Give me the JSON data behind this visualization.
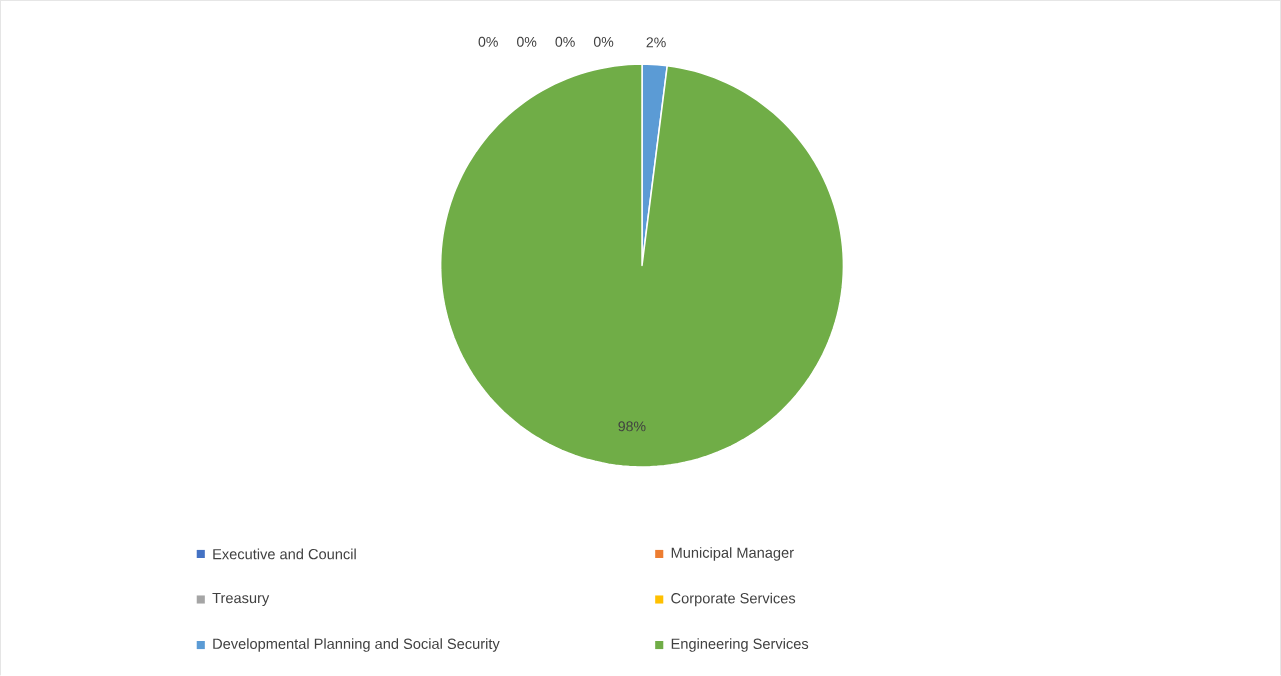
{
  "chart_data": {
    "type": "pie",
    "categories": [
      "Executive and Council",
      "Municipal Manager",
      "Treasury",
      "Corporate Services",
      "Developmental Planning and Social Security",
      "Engineering Services"
    ],
    "values": [
      0,
      0,
      0,
      0,
      2,
      98
    ],
    "colors": [
      "#4472c4",
      "#ed7d31",
      "#a5a5a5",
      "#ffc000",
      "#5b9bd5",
      "#70ad47"
    ],
    "value_labels": [
      "0%",
      "0%",
      "0%",
      "0%",
      "2%",
      "98%"
    ],
    "legend": "bottom"
  }
}
